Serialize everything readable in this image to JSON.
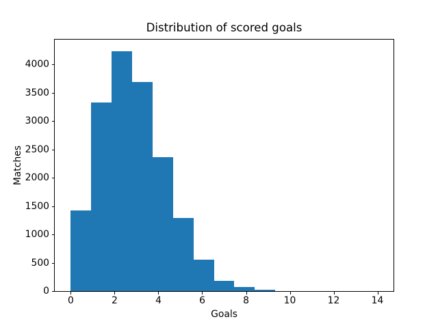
{
  "chart_data": {
    "type": "bar",
    "subtype": "histogram",
    "title": "Distribution of scored goals",
    "xlabel": "Goals",
    "ylabel": "Matches",
    "bar_color": "#1f77b4",
    "background_color": "#ffffff",
    "grid": false,
    "xlim": [
      -0.7333,
      14.7333
    ],
    "ylim": [
      0,
      4440
    ],
    "xticks": [
      0,
      2,
      4,
      6,
      8,
      10,
      12,
      14
    ],
    "yticks": [
      0,
      500,
      1000,
      1500,
      2000,
      2500,
      3000,
      3500,
      4000
    ],
    "bin_edges": [
      0,
      0.9333,
      1.8667,
      2.8,
      3.7333,
      4.6667,
      5.6,
      6.5333,
      7.4667,
      8.4,
      9.3333,
      10.2667,
      11.2,
      12.1333,
      13.0667,
      14
    ],
    "counts": [
      1420,
      3320,
      4230,
      3690,
      2360,
      1290,
      560,
      185,
      75,
      25,
      0,
      0,
      0,
      0,
      0
    ]
  }
}
